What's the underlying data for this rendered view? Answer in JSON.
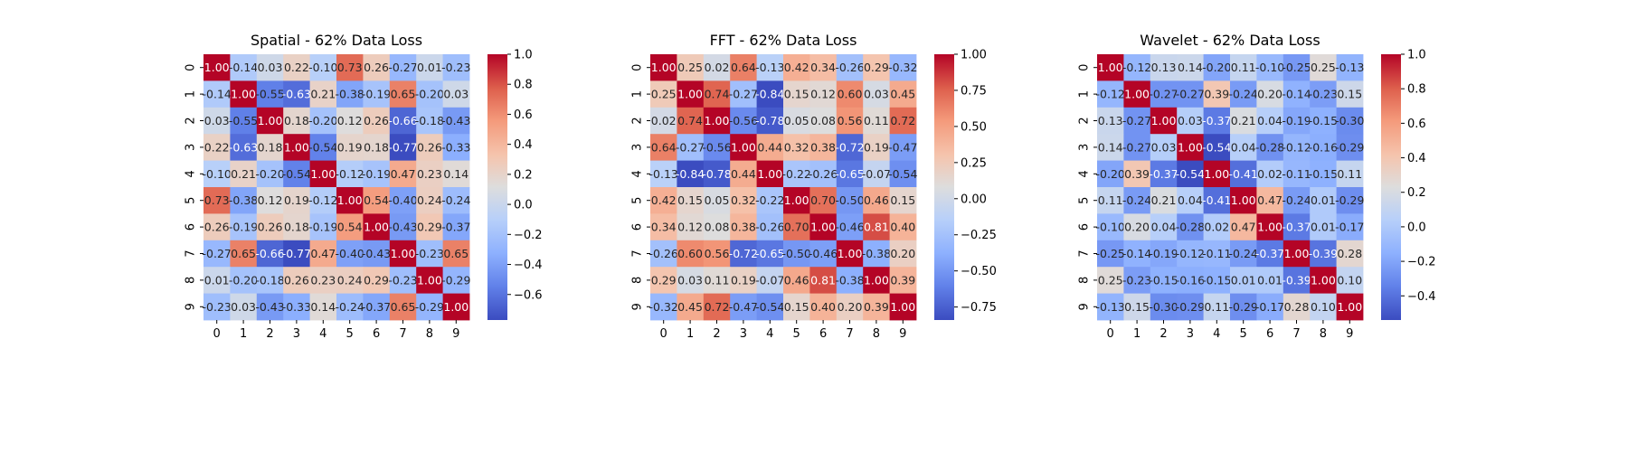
{
  "chart_data": [
    {
      "type": "heatmap",
      "title": "Spatial - 62% Data Loss",
      "x_labels": [
        "0",
        "1",
        "2",
        "3",
        "4",
        "5",
        "6",
        "7",
        "8",
        "9"
      ],
      "y_labels": [
        "0",
        "1",
        "2",
        "3",
        "4",
        "5",
        "6",
        "7",
        "8",
        "9"
      ],
      "matrix": [
        [
          1.0,
          -0.14,
          0.03,
          0.22,
          -0.1,
          0.73,
          0.26,
          -0.27,
          0.01,
          -0.23
        ],
        [
          -0.14,
          1.0,
          -0.55,
          -0.63,
          0.21,
          -0.38,
          -0.19,
          0.65,
          -0.2,
          0.03
        ],
        [
          0.03,
          -0.55,
          1.0,
          0.18,
          -0.2,
          0.12,
          0.26,
          -0.66,
          -0.18,
          -0.43
        ],
        [
          0.22,
          -0.63,
          0.18,
          1.0,
          -0.54,
          0.19,
          0.18,
          -0.77,
          0.26,
          -0.33
        ],
        [
          -0.1,
          0.21,
          -0.2,
          -0.54,
          1.0,
          -0.12,
          -0.19,
          0.47,
          0.23,
          0.14
        ],
        [
          0.73,
          -0.38,
          0.12,
          0.19,
          -0.12,
          1.0,
          0.54,
          -0.4,
          0.24,
          -0.24
        ],
        [
          0.26,
          -0.19,
          0.26,
          0.18,
          -0.19,
          0.54,
          1.0,
          -0.43,
          0.29,
          -0.37
        ],
        [
          -0.27,
          0.65,
          -0.66,
          -0.77,
          0.47,
          -0.4,
          -0.43,
          1.0,
          -0.23,
          0.65
        ],
        [
          0.01,
          -0.2,
          -0.18,
          0.26,
          0.23,
          0.24,
          0.29,
          -0.23,
          1.0,
          -0.29
        ],
        [
          -0.23,
          0.03,
          -0.43,
          -0.33,
          0.14,
          -0.24,
          -0.37,
          0.65,
          -0.29,
          1.0
        ]
      ],
      "vmin": -0.77,
      "vmax": 1.0,
      "colorbar_ticks": [
        -0.6,
        -0.4,
        -0.2,
        0.0,
        0.2,
        0.4,
        0.6,
        0.8,
        1.0
      ],
      "colorbar_labels": [
        "−0.6",
        "−0.4",
        "−0.2",
        "0.0",
        "0.2",
        "0.4",
        "0.6",
        "0.8",
        "1.0"
      ]
    },
    {
      "type": "heatmap",
      "title": "FFT - 62% Data Loss",
      "x_labels": [
        "0",
        "1",
        "2",
        "3",
        "4",
        "5",
        "6",
        "7",
        "8",
        "9"
      ],
      "y_labels": [
        "0",
        "1",
        "2",
        "3",
        "4",
        "5",
        "6",
        "7",
        "8",
        "9"
      ],
      "matrix": [
        [
          1.0,
          0.25,
          0.02,
          0.64,
          -0.13,
          0.42,
          0.34,
          -0.26,
          0.29,
          -0.32
        ],
        [
          0.25,
          1.0,
          0.74,
          -0.27,
          -0.84,
          0.15,
          0.12,
          0.6,
          0.03,
          0.45
        ],
        [
          0.02,
          0.74,
          1.0,
          -0.56,
          -0.78,
          0.05,
          0.08,
          0.56,
          0.11,
          0.72
        ],
        [
          0.64,
          -0.27,
          -0.56,
          1.0,
          0.44,
          0.32,
          0.38,
          -0.72,
          0.19,
          -0.47
        ],
        [
          -0.13,
          -0.84,
          -0.78,
          0.44,
          1.0,
          -0.22,
          -0.26,
          -0.65,
          -0.07,
          -0.54
        ],
        [
          0.42,
          0.15,
          0.05,
          0.32,
          -0.22,
          1.0,
          0.7,
          -0.5,
          0.46,
          0.15
        ],
        [
          0.34,
          0.12,
          0.08,
          0.38,
          -0.26,
          0.7,
          1.0,
          -0.46,
          0.81,
          0.4
        ],
        [
          -0.26,
          0.6,
          0.56,
          -0.72,
          -0.65,
          -0.5,
          -0.46,
          1.0,
          -0.38,
          0.2
        ],
        [
          0.29,
          0.03,
          0.11,
          0.19,
          -0.07,
          0.46,
          0.81,
          -0.38,
          1.0,
          0.39
        ],
        [
          -0.32,
          0.45,
          0.72,
          -0.47,
          -0.54,
          0.15,
          0.4,
          0.2,
          0.39,
          1.0
        ]
      ],
      "vmin": -0.84,
      "vmax": 1.0,
      "colorbar_ticks": [
        -0.75,
        -0.5,
        -0.25,
        0.0,
        0.25,
        0.5,
        0.75,
        1.0
      ],
      "colorbar_labels": [
        "−0.75",
        "−0.50",
        "−0.25",
        "0.00",
        "0.25",
        "0.50",
        "0.75",
        "1.00"
      ]
    },
    {
      "type": "heatmap",
      "title": "Wavelet - 62% Data Loss",
      "x_labels": [
        "0",
        "1",
        "2",
        "3",
        "4",
        "5",
        "6",
        "7",
        "8",
        "9"
      ],
      "y_labels": [
        "0",
        "1",
        "2",
        "3",
        "4",
        "5",
        "6",
        "7",
        "8",
        "9"
      ],
      "matrix": [
        [
          1.0,
          -0.12,
          0.13,
          0.14,
          -0.2,
          0.11,
          -0.1,
          -0.25,
          0.25,
          -0.13
        ],
        [
          -0.12,
          1.0,
          -0.27,
          -0.27,
          0.39,
          -0.24,
          0.2,
          -0.14,
          -0.23,
          0.15
        ],
        [
          0.13,
          -0.27,
          1.0,
          0.03,
          -0.37,
          0.21,
          0.04,
          -0.19,
          -0.15,
          -0.3
        ],
        [
          0.14,
          -0.27,
          0.03,
          1.0,
          -0.54,
          0.04,
          -0.28,
          -0.12,
          -0.16,
          -0.29
        ],
        [
          -0.2,
          0.39,
          -0.37,
          -0.54,
          1.0,
          -0.41,
          0.02,
          -0.11,
          -0.15,
          0.11
        ],
        [
          0.11,
          -0.24,
          0.21,
          0.04,
          -0.41,
          1.0,
          0.47,
          -0.24,
          0.01,
          -0.29
        ],
        [
          -0.1,
          0.2,
          0.04,
          -0.28,
          0.02,
          0.47,
          1.0,
          -0.37,
          0.01,
          -0.17
        ],
        [
          -0.25,
          -0.14,
          -0.19,
          -0.12,
          -0.11,
          -0.24,
          -0.37,
          1.0,
          -0.39,
          0.28
        ],
        [
          0.25,
          -0.23,
          -0.15,
          -0.16,
          -0.15,
          0.01,
          0.01,
          -0.39,
          1.0,
          0.1
        ],
        [
          -0.13,
          0.15,
          -0.3,
          -0.29,
          0.11,
          -0.29,
          -0.17,
          0.28,
          0.1,
          1.0
        ]
      ],
      "vmin": -0.54,
      "vmax": 1.0,
      "colorbar_ticks": [
        -0.4,
        -0.2,
        0.0,
        0.2,
        0.4,
        0.6,
        0.8,
        1.0
      ],
      "colorbar_labels": [
        "−0.4",
        "−0.2",
        "0.0",
        "0.2",
        "0.4",
        "0.6",
        "0.8",
        "1.0"
      ]
    }
  ],
  "colormap": "coolwarm",
  "colors": {
    "cold": "#3b4cc0",
    "neutral": "#dddddd",
    "warm": "#b40426"
  }
}
